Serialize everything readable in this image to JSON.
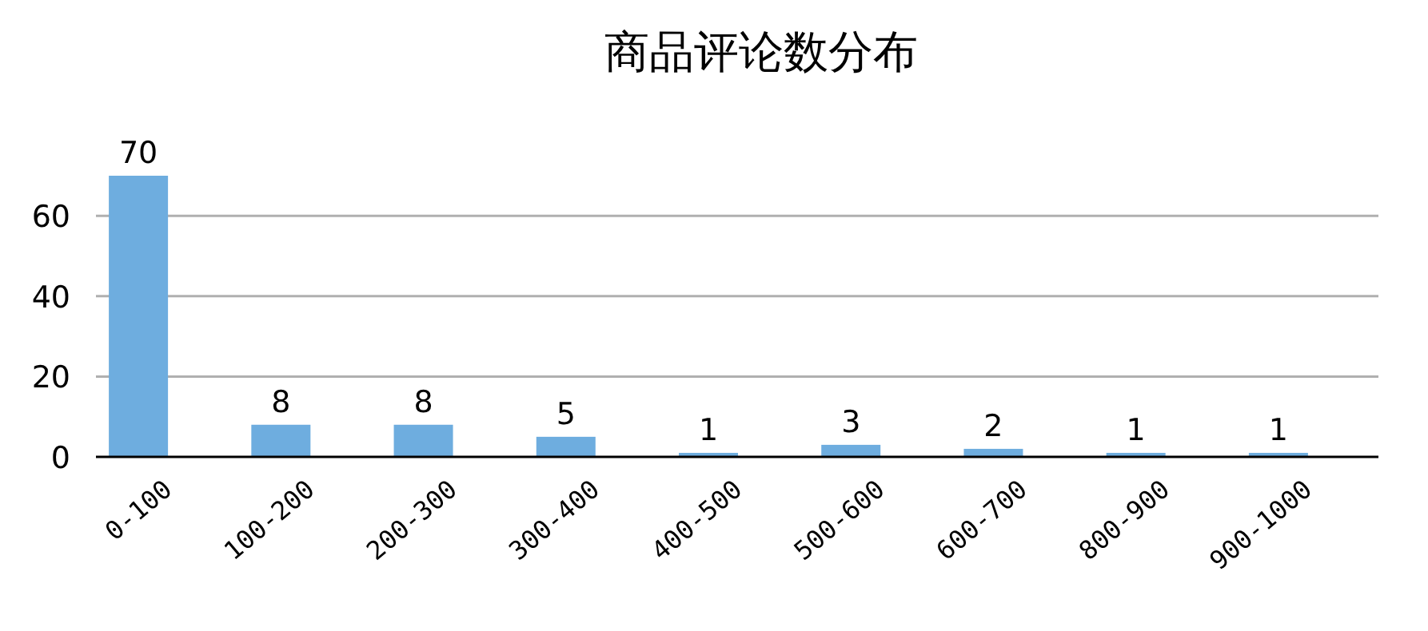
{
  "chart_data": {
    "type": "bar",
    "title": "商品评论数分布",
    "categories": [
      "0-100",
      "100-200",
      "200-300",
      "300-400",
      "400-500",
      "500-600",
      "600-700",
      "800-900",
      "900-1000"
    ],
    "values": [
      70,
      8,
      8,
      5,
      1,
      3,
      2,
      1,
      1
    ],
    "color": "#6eaddf",
    "ylim": [
      0,
      70
    ],
    "yticks": [
      0,
      20,
      40,
      60
    ],
    "grid": "y",
    "data_labels": true
  }
}
